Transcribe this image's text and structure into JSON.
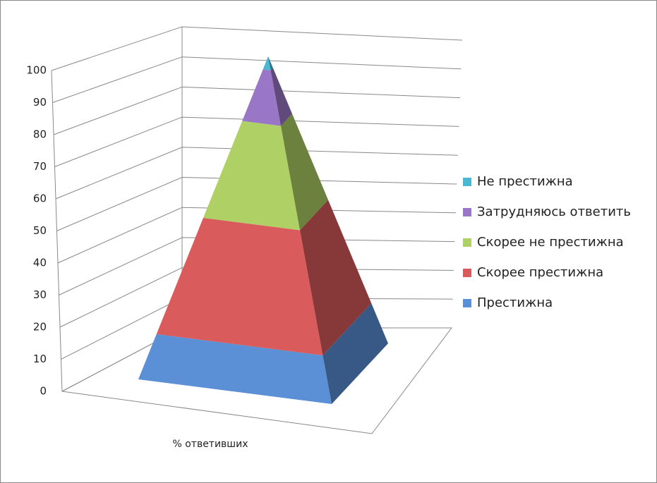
{
  "chart_data": {
    "type": "pyramid3d",
    "categories": [
      "% ответивших"
    ],
    "series": [
      {
        "name": "Престижна",
        "color": "#5b8fd6",
        "values": [
          14
        ]
      },
      {
        "name": "Скорее престижна",
        "color": "#d95b5b",
        "values": [
          36
        ]
      },
      {
        "name": "Скорее не престижна",
        "color": "#afd065",
        "values": [
          30
        ]
      },
      {
        "name": "Затрудняюсь ответить",
        "color": "#9a77c6",
        "values": [
          16
        ]
      },
      {
        "name": "Не престижна",
        "color": "#4bb8d2",
        "values": [
          4
        ]
      }
    ],
    "ylim": [
      0,
      100
    ],
    "yticks": [
      0,
      10,
      20,
      30,
      40,
      50,
      60,
      70,
      80,
      90,
      100
    ],
    "grid": true,
    "legend": "right"
  }
}
